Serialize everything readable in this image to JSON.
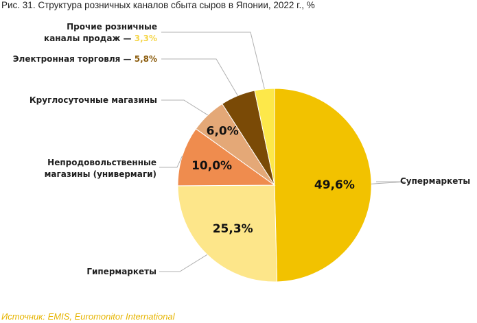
{
  "figure": {
    "title": "Рис. 31. Структура розничных каналов сбыта сыров в Японии, 2022 г., %",
    "source": "Источник: EMIS,  Euromonitor International"
  },
  "chart_data": {
    "type": "pie",
    "title": "Рис. 31. Структура розничных каналов сбыта сыров в Японии, 2022 г., %",
    "unit": "%",
    "slices": [
      {
        "key": "supermarkets",
        "name": "Супермаркеты",
        "value": 49.6,
        "value_label": "49,6%",
        "color": "#f2c200"
      },
      {
        "key": "hypermarkets",
        "name": "Гипермаркеты",
        "value": 25.3,
        "value_label": "25,3%",
        "color": "#fde68a"
      },
      {
        "key": "nonfood",
        "name_lines": [
          "Непродовольственные",
          "магазины (универмаги)"
        ],
        "value": 10.0,
        "value_label": "10,0%",
        "color": "#ef8c4e"
      },
      {
        "key": "convenience",
        "name": "Круглосуточные магазины",
        "value": 6.0,
        "value_label": "6,0%",
        "color": "#e4a877"
      },
      {
        "key": "ecommerce",
        "name": "Электронная торговля",
        "value": 5.8,
        "value_label": "5,8%",
        "color": "#7a4a06"
      },
      {
        "key": "other",
        "name_lines": [
          "Прочие розничные",
          "каналы продаж"
        ],
        "value": 3.3,
        "value_label": "3,3%",
        "color": "#fde84a"
      }
    ],
    "start_angle": "12 o'clock",
    "direction": "clockwise",
    "legend": "none"
  }
}
